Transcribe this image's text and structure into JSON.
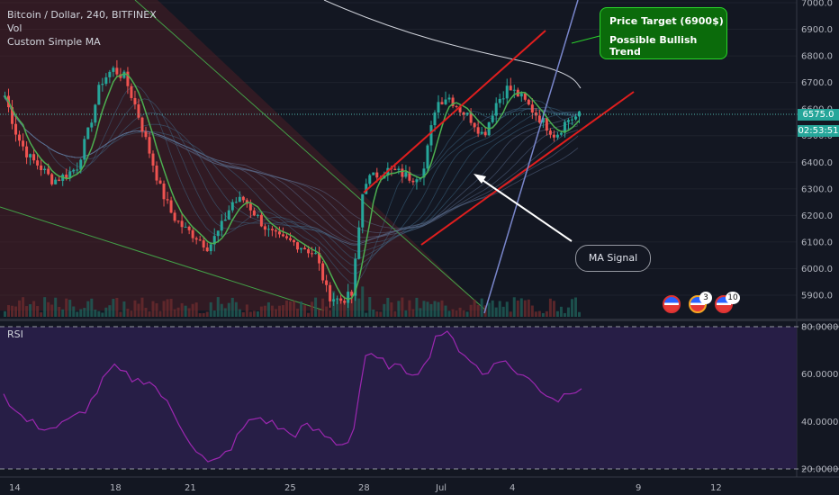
{
  "legend": {
    "symbol": "Bitcoin / Dollar, 240, BITFINEX",
    "vol": "Vol",
    "ma": "Custom Simple MA"
  },
  "rsi_label": "RSI",
  "callouts": {
    "target_line1": "Price Target (6900$)",
    "target_line2": "Possible Bullish Trend",
    "ma_signal": "MA Signal"
  },
  "price_tags": {
    "last_price": "6575.0",
    "countdown": "02:53:51"
  },
  "badges": {
    "a": "3",
    "b": "10"
  },
  "colors": {
    "background": "#131722",
    "up": "#26a69a",
    "down": "#ef5350",
    "channel": "#e01e1e",
    "ma_green": "#4caf50",
    "rsi_line": "#9c27b0",
    "rsi_band": "#2a1f4a"
  },
  "chart_data": [
    {
      "type": "candlestick",
      "title": "Bitcoin / Dollar, 240, BITFINEX",
      "x_ticks": [
        "14",
        "18",
        "21",
        "25",
        "28",
        "Jul",
        "4",
        "9",
        "12"
      ],
      "y_ticks": [
        "5900.0",
        "6000.0",
        "6100.0",
        "6200.0",
        "6300.0",
        "6400.0",
        "6500.0",
        "6600.0",
        "6700.0",
        "6800.0",
        "6900.0",
        "7000.0"
      ],
      "ylim": [
        5800,
        7000
      ],
      "close_path": [
        6650,
        6500,
        6420,
        6380,
        6330,
        6350,
        6380,
        6520,
        6700,
        6750,
        6720,
        6600,
        6450,
        6300,
        6200,
        6150,
        6120,
        6080,
        6150,
        6250,
        6260,
        6200,
        6140,
        6110,
        6100,
        6080,
        6050,
        5900,
        5880,
        5900,
        6330,
        6350,
        6370,
        6360,
        6340,
        6370,
        6620,
        6650,
        6600,
        6560,
        6500,
        6620,
        6680,
        6650,
        6600,
        6550,
        6500,
        6560,
        6575
      ],
      "last_price": 6575.0,
      "annotations": [
        "Price Target (6900$)",
        "Possible Bullish Trend",
        "MA Signal"
      ]
    },
    {
      "type": "line",
      "title": "RSI",
      "y_ticks": [
        "20.0000",
        "40.0000",
        "60.0000",
        "80.0000"
      ],
      "ylim": [
        20,
        80
      ],
      "band": [
        20,
        80
      ],
      "values": [
        52,
        44,
        40,
        38,
        37,
        39,
        42,
        46,
        55,
        63,
        60,
        57,
        58,
        52,
        44,
        36,
        28,
        22,
        24,
        30,
        38,
        42,
        40,
        37,
        34,
        38,
        36,
        33,
        30,
        34,
        68,
        66,
        64,
        62,
        61,
        63,
        78,
        76,
        70,
        65,
        58,
        68,
        63,
        60,
        56,
        52,
        49,
        53,
        55
      ]
    }
  ]
}
